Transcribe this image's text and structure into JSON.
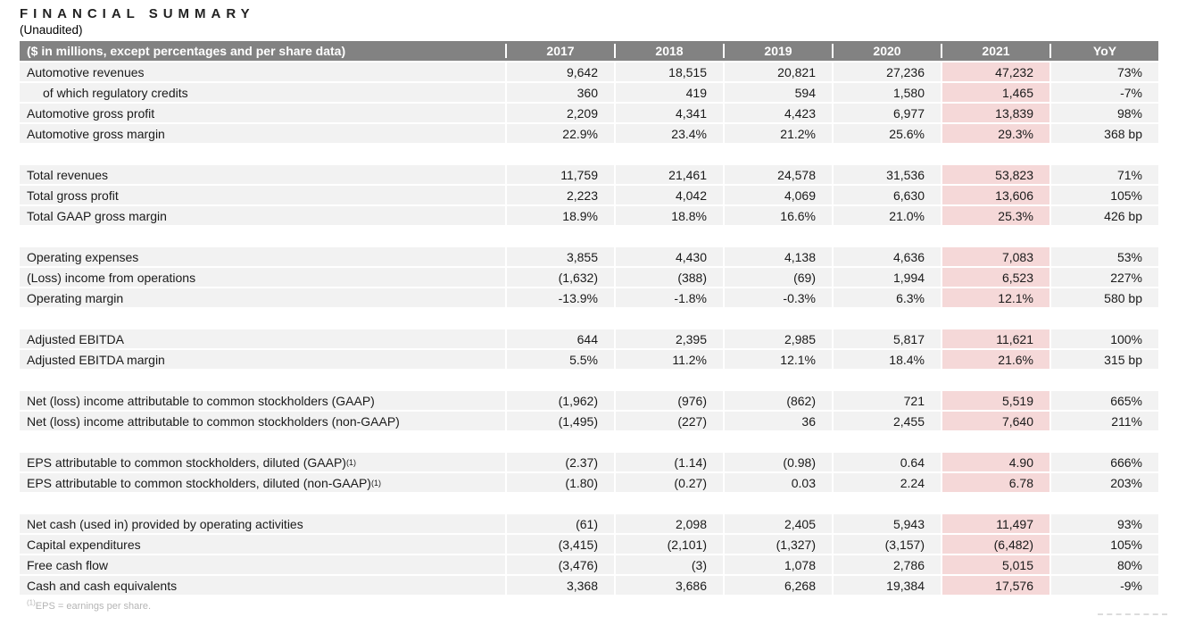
{
  "title": "FINANCIAL SUMMARY",
  "subtitle": "(Unaudited)",
  "colors": {
    "header_bg": "#828282",
    "row_bg": "#f2f2f2",
    "highlight_2021_bg": "#f5d8d8",
    "header_text": "#ffffff",
    "body_text": "#1a1a1a",
    "footnote_text": "#b5b5b5"
  },
  "table": {
    "header": {
      "label": "($ in millions, except percentages and per share data)",
      "columns": [
        "2017",
        "2018",
        "2019",
        "2020",
        "2021",
        "YoY"
      ]
    },
    "highlight_column": "2021",
    "sections": [
      {
        "rows": [
          {
            "label": "Automotive revenues",
            "indent": false,
            "values": [
              "9,642",
              "18,515",
              "20,821",
              "27,236",
              "47,232",
              "73%"
            ]
          },
          {
            "label": "of which regulatory credits",
            "indent": true,
            "values": [
              "360",
              "419",
              "594",
              "1,580",
              "1,465",
              "-7%"
            ]
          },
          {
            "label": "Automotive gross profit",
            "indent": false,
            "values": [
              "2,209",
              "4,341",
              "4,423",
              "6,977",
              "13,839",
              "98%"
            ]
          },
          {
            "label": "Automotive gross margin",
            "indent": false,
            "values": [
              "22.9%",
              "23.4%",
              "21.2%",
              "25.6%",
              "29.3%",
              "368 bp"
            ]
          }
        ]
      },
      {
        "rows": [
          {
            "label": "Total revenues",
            "indent": false,
            "values": [
              "11,759",
              "21,461",
              "24,578",
              "31,536",
              "53,823",
              "71%"
            ]
          },
          {
            "label": "Total gross profit",
            "indent": false,
            "values": [
              "2,223",
              "4,042",
              "4,069",
              "6,630",
              "13,606",
              "105%"
            ]
          },
          {
            "label": "Total GAAP gross margin",
            "indent": false,
            "values": [
              "18.9%",
              "18.8%",
              "16.6%",
              "21.0%",
              "25.3%",
              "426 bp"
            ]
          }
        ]
      },
      {
        "rows": [
          {
            "label": "Operating expenses",
            "indent": false,
            "values": [
              "3,855",
              "4,430",
              "4,138",
              "4,636",
              "7,083",
              "53%"
            ]
          },
          {
            "label": "(Loss) income from operations",
            "indent": false,
            "values": [
              "(1,632)",
              "(388)",
              "(69)",
              "1,994",
              "6,523",
              "227%"
            ]
          },
          {
            "label": "Operating margin",
            "indent": false,
            "values": [
              "-13.9%",
              "-1.8%",
              "-0.3%",
              "6.3%",
              "12.1%",
              "580 bp"
            ]
          }
        ]
      },
      {
        "rows": [
          {
            "label": "Adjusted EBITDA",
            "indent": false,
            "values": [
              "644",
              "2,395",
              "2,985",
              "5,817",
              "11,621",
              "100%"
            ]
          },
          {
            "label": "Adjusted EBITDA margin",
            "indent": false,
            "values": [
              "5.5%",
              "11.2%",
              "12.1%",
              "18.4%",
              "21.6%",
              "315 bp"
            ]
          }
        ]
      },
      {
        "rows": [
          {
            "label": "Net (loss) income attributable to common stockholders (GAAP)",
            "indent": false,
            "values": [
              "(1,962)",
              "(976)",
              "(862)",
              "721",
              "5,519",
              "665%"
            ]
          },
          {
            "label": "Net (loss) income attributable to common stockholders (non-GAAP)",
            "indent": false,
            "values": [
              "(1,495)",
              "(227)",
              "36",
              "2,455",
              "7,640",
              "211%"
            ]
          }
        ]
      },
      {
        "rows": [
          {
            "label": "EPS attributable to common stockholders, diluted (GAAP)",
            "sup": "(1)",
            "indent": false,
            "values": [
              "(2.37)",
              "(1.14)",
              "(0.98)",
              "0.64",
              "4.90",
              "666%"
            ]
          },
          {
            "label": "EPS attributable to common stockholders, diluted (non-GAAP)",
            "sup": "(1)",
            "indent": false,
            "values": [
              "(1.80)",
              "(0.27)",
              "0.03",
              "2.24",
              "6.78",
              "203%"
            ]
          }
        ]
      },
      {
        "rows": [
          {
            "label": "Net cash (used in) provided by operating activities",
            "indent": false,
            "values": [
              "(61)",
              "2,098",
              "2,405",
              "5,943",
              "11,497",
              "93%"
            ]
          },
          {
            "label": "Capital expenditures",
            "indent": false,
            "values": [
              "(3,415)",
              "(2,101)",
              "(1,327)",
              "(3,157)",
              "(6,482)",
              "105%"
            ]
          },
          {
            "label": "Free cash flow",
            "indent": false,
            "values": [
              "(3,476)",
              "(3)",
              "1,078",
              "2,786",
              "5,015",
              "80%"
            ]
          },
          {
            "label": "Cash and cash equivalents",
            "indent": false,
            "values": [
              "3,368",
              "3,686",
              "6,268",
              "19,384",
              "17,576",
              "-9%"
            ]
          }
        ]
      }
    ]
  },
  "footnote": {
    "sup": "(1)",
    "text": "EPS = earnings per share."
  }
}
